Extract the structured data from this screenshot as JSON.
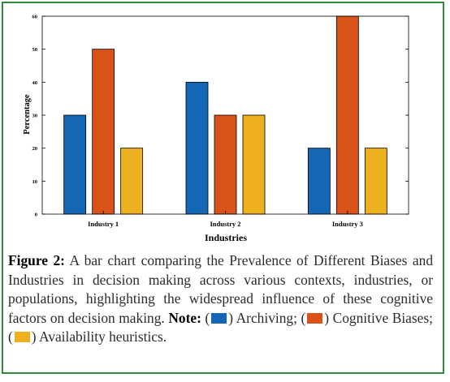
{
  "chart_data": {
    "type": "bar",
    "xlabel": "Industries",
    "ylabel": "Percentage",
    "categories": [
      "Industry 1",
      "Industry 2",
      "Industry 3"
    ],
    "series": [
      {
        "name": "Archiving",
        "color": "#1467b4",
        "values": [
          30,
          40,
          20
        ]
      },
      {
        "name": "Cognitive Biases",
        "color": "#d95319",
        "values": [
          50,
          30,
          60
        ]
      },
      {
        "name": "Availability heuristics",
        "color": "#edb120",
        "values": [
          20,
          30,
          20
        ]
      }
    ],
    "ylim": [
      0,
      60
    ],
    "yticks": [
      0,
      10,
      20,
      30,
      40,
      50,
      60
    ],
    "grid": false,
    "legend": "none"
  },
  "caption": {
    "label": "Figure 2:",
    "text": "A bar chart comparing the Prevalence of Different Biases and Industries in decision making across various contexts, industries, or populations, highlighting the widespread influence of these cognitive factors on decision making.",
    "note_label": "Note:",
    "legend_items": [
      {
        "name": "Archiving",
        "color": "#1467b4"
      },
      {
        "name": "Cognitive Biases",
        "color": "#d95319"
      },
      {
        "name": "Availability heuristics.",
        "color": "#edb120"
      }
    ]
  }
}
